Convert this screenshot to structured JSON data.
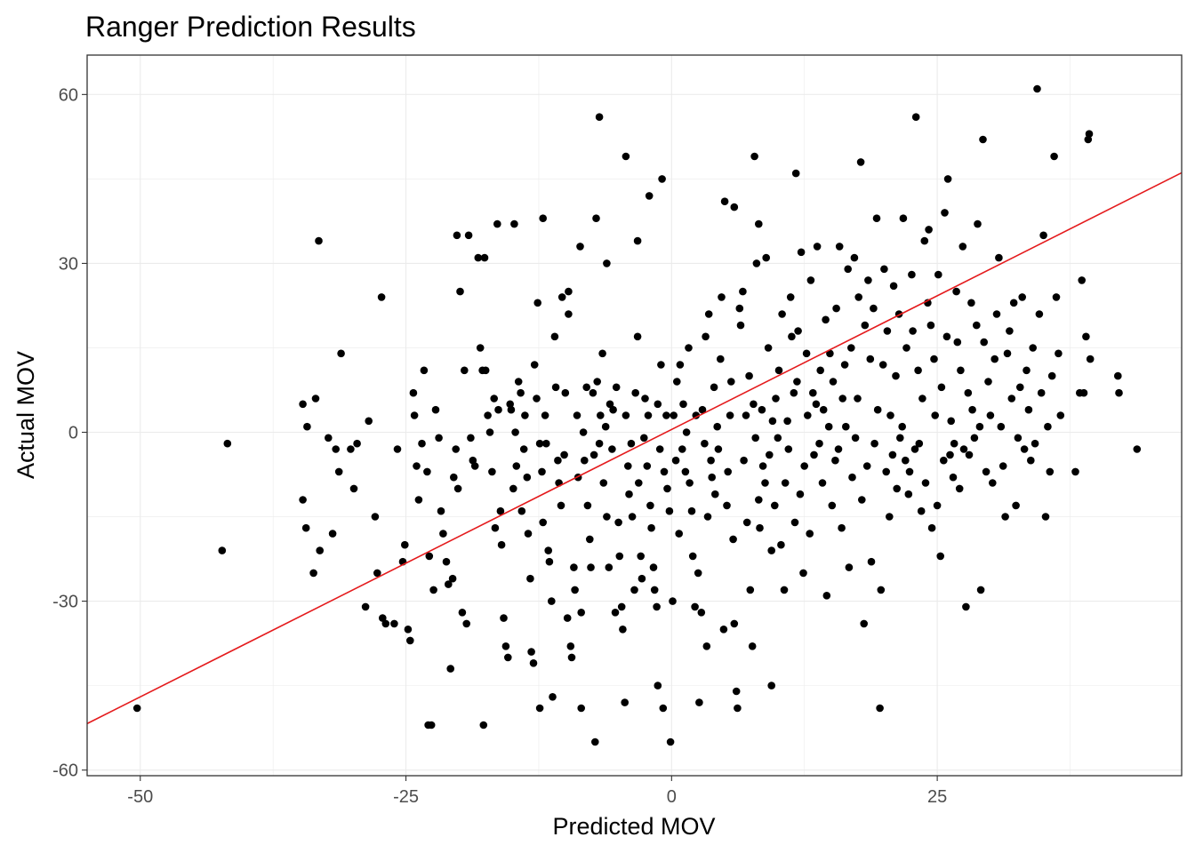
{
  "chart_data": {
    "type": "scatter",
    "title": "Ranger Prediction Results",
    "xlabel": "Predicted MOV",
    "ylabel": "Actual MOV",
    "xlim": [
      -55,
      48
    ],
    "ylim": [
      -61,
      67
    ],
    "x_ticks": [
      -50,
      -25,
      0,
      25
    ],
    "y_ticks": [
      -60,
      -30,
      0,
      30,
      60
    ],
    "x_tick_labels": [
      "-50",
      "-25",
      "0",
      "25"
    ],
    "y_tick_labels": [
      "-60",
      "-30",
      "0",
      "30",
      "60"
    ],
    "grid": true,
    "legend": "none",
    "point_color": "#000000",
    "fit_line": {
      "color": "#e41a1c",
      "slope": 0.95,
      "intercept": 0.5
    },
    "points": [
      [
        -50.3,
        -49
      ],
      [
        -42.3,
        -21
      ],
      [
        -41.8,
        -2
      ],
      [
        -33.2,
        34
      ],
      [
        -34.7,
        5
      ],
      [
        -34.3,
        1
      ],
      [
        -33.7,
        -25
      ],
      [
        -33.1,
        -21
      ],
      [
        -32.3,
        -1
      ],
      [
        -33.5,
        6
      ],
      [
        -34.7,
        -12
      ],
      [
        -34.4,
        -17
      ],
      [
        -31.6,
        -3
      ],
      [
        -31.3,
        -7
      ],
      [
        -31.1,
        14
      ],
      [
        -31.9,
        -18
      ],
      [
        -30.2,
        -3
      ],
      [
        -29.9,
        -10
      ],
      [
        -29.6,
        -2
      ],
      [
        -28.8,
        -31
      ],
      [
        -28.5,
        2
      ],
      [
        -27.9,
        -15
      ],
      [
        -27.7,
        -25
      ],
      [
        -27.3,
        24
      ],
      [
        -27.2,
        -33
      ],
      [
        -26.9,
        -34
      ],
      [
        -26.1,
        -34
      ],
      [
        -25.8,
        -3
      ],
      [
        -25.3,
        -23
      ],
      [
        -25.1,
        -20
      ],
      [
        -24.8,
        -35
      ],
      [
        -24.6,
        -37
      ],
      [
        -24.3,
        7
      ],
      [
        -24.2,
        3
      ],
      [
        -24.0,
        -6
      ],
      [
        -23.8,
        -12
      ],
      [
        -23.5,
        -2
      ],
      [
        -23.3,
        11
      ],
      [
        -23.0,
        -7
      ],
      [
        -22.8,
        -22
      ],
      [
        -22.6,
        -52
      ],
      [
        -22.4,
        -28
      ],
      [
        -22.2,
        4
      ],
      [
        -21.9,
        -1
      ],
      [
        -21.7,
        -14
      ],
      [
        -21.5,
        -18
      ],
      [
        -21.2,
        -23
      ],
      [
        -21.0,
        -27
      ],
      [
        -20.8,
        -42
      ],
      [
        -20.6,
        -26
      ],
      [
        -20.5,
        -8
      ],
      [
        -20.3,
        -3
      ],
      [
        -20.1,
        -10
      ],
      [
        -19.9,
        25
      ],
      [
        -19.7,
        -32
      ],
      [
        -19.5,
        11
      ],
      [
        -19.3,
        -34
      ],
      [
        -19.1,
        35
      ],
      [
        -18.9,
        -1
      ],
      [
        -18.7,
        -5
      ],
      [
        -18.5,
        -6
      ],
      [
        -18.2,
        31
      ],
      [
        -18.0,
        15
      ],
      [
        -17.8,
        11
      ],
      [
        -17.7,
        -52
      ],
      [
        -17.5,
        11
      ],
      [
        -17.3,
        3
      ],
      [
        -17.1,
        0
      ],
      [
        -16.9,
        -7
      ],
      [
        -16.7,
        6
      ],
      [
        -16.6,
        -17
      ],
      [
        -16.4,
        37
      ],
      [
        -16.3,
        4
      ],
      [
        -16.1,
        -14
      ],
      [
        -16.0,
        -20
      ],
      [
        -15.8,
        -33
      ],
      [
        -15.6,
        -38
      ],
      [
        -15.4,
        -40
      ],
      [
        -15.2,
        5
      ],
      [
        -15.1,
        4
      ],
      [
        -14.9,
        -10
      ],
      [
        -14.7,
        0
      ],
      [
        -14.6,
        -6
      ],
      [
        -14.4,
        9
      ],
      [
        -14.2,
        7
      ],
      [
        -14.1,
        -14
      ],
      [
        -13.9,
        -3
      ],
      [
        -13.8,
        3
      ],
      [
        -13.6,
        -8
      ],
      [
        -13.5,
        -18
      ],
      [
        -13.3,
        -26
      ],
      [
        -13.2,
        -39
      ],
      [
        -13.0,
        -41
      ],
      [
        -12.9,
        12
      ],
      [
        -12.7,
        6
      ],
      [
        -12.6,
        23
      ],
      [
        -12.4,
        -2
      ],
      [
        -12.2,
        -7
      ],
      [
        -12.1,
        -16
      ],
      [
        -11.9,
        3
      ],
      [
        -11.8,
        -2
      ],
      [
        -11.6,
        -21
      ],
      [
        -11.5,
        -23
      ],
      [
        -11.3,
        -30
      ],
      [
        -11.2,
        -47
      ],
      [
        -11.0,
        17
      ],
      [
        -10.9,
        8
      ],
      [
        -10.7,
        -5
      ],
      [
        -10.6,
        -9
      ],
      [
        -10.4,
        -13
      ],
      [
        -10.3,
        24
      ],
      [
        -10.1,
        -4
      ],
      [
        -10.0,
        7
      ],
      [
        -9.8,
        -33
      ],
      [
        -9.7,
        25
      ],
      [
        -9.5,
        -38
      ],
      [
        -9.4,
        -40
      ],
      [
        -9.2,
        -24
      ],
      [
        -9.1,
        -28
      ],
      [
        -8.9,
        3
      ],
      [
        -8.8,
        -8
      ],
      [
        -8.6,
        33
      ],
      [
        -8.5,
        -32
      ],
      [
        -8.3,
        0
      ],
      [
        -8.2,
        -5
      ],
      [
        -8.0,
        8
      ],
      [
        -7.9,
        -13
      ],
      [
        -7.7,
        -19
      ],
      [
        -7.6,
        -24
      ],
      [
        -7.4,
        7
      ],
      [
        -7.3,
        -4
      ],
      [
        -7.1,
        38
      ],
      [
        -7.0,
        9
      ],
      [
        -6.8,
        -2
      ],
      [
        -6.7,
        3
      ],
      [
        -6.5,
        14
      ],
      [
        -6.4,
        -9
      ],
      [
        -6.2,
        1
      ],
      [
        -6.1,
        -15
      ],
      [
        -5.9,
        -24
      ],
      [
        -5.8,
        5
      ],
      [
        -5.6,
        -3
      ],
      [
        -5.5,
        4
      ],
      [
        -5.3,
        -32
      ],
      [
        -5.2,
        8
      ],
      [
        -5.0,
        -16
      ],
      [
        -4.9,
        -22
      ],
      [
        -4.7,
        -31
      ],
      [
        -4.6,
        -35
      ],
      [
        -4.4,
        -48
      ],
      [
        -4.3,
        3
      ],
      [
        -4.1,
        -6
      ],
      [
        -4.0,
        -11
      ],
      [
        -3.8,
        -2
      ],
      [
        -3.7,
        -15
      ],
      [
        -3.5,
        -28
      ],
      [
        -3.4,
        7
      ],
      [
        -3.2,
        17
      ],
      [
        -3.1,
        -9
      ],
      [
        -2.9,
        -22
      ],
      [
        -2.8,
        -26
      ],
      [
        -2.6,
        -1
      ],
      [
        -2.5,
        6
      ],
      [
        -2.3,
        -6
      ],
      [
        -2.2,
        3
      ],
      [
        -2.0,
        -13
      ],
      [
        -1.9,
        -17
      ],
      [
        -1.7,
        -24
      ],
      [
        -1.6,
        -28
      ],
      [
        -1.4,
        -31
      ],
      [
        -1.3,
        5
      ],
      [
        -1.1,
        -3
      ],
      [
        -1.0,
        12
      ],
      [
        -0.8,
        -49
      ],
      [
        -0.7,
        -7
      ],
      [
        -0.5,
        3
      ],
      [
        -0.4,
        -10
      ],
      [
        -0.2,
        -14
      ],
      [
        -0.1,
        -55
      ],
      [
        0.1,
        -30
      ],
      [
        0.2,
        3
      ],
      [
        0.4,
        -5
      ],
      [
        0.5,
        9
      ],
      [
        0.7,
        -18
      ],
      [
        0.8,
        12
      ],
      [
        1.0,
        -3
      ],
      [
        1.1,
        5
      ],
      [
        1.3,
        -7
      ],
      [
        1.4,
        0
      ],
      [
        1.6,
        15
      ],
      [
        1.7,
        -9
      ],
      [
        1.9,
        -14
      ],
      [
        2.0,
        -22
      ],
      [
        2.2,
        -31
      ],
      [
        2.3,
        3
      ],
      [
        2.5,
        -25
      ],
      [
        2.6,
        -48
      ],
      [
        2.8,
        -32
      ],
      [
        2.9,
        4
      ],
      [
        3.1,
        -2
      ],
      [
        3.2,
        17
      ],
      [
        3.4,
        -15
      ],
      [
        3.5,
        21
      ],
      [
        3.7,
        -5
      ],
      [
        3.8,
        -8
      ],
      [
        4.0,
        8
      ],
      [
        4.1,
        -11
      ],
      [
        4.3,
        1
      ],
      [
        4.4,
        -3
      ],
      [
        4.6,
        13
      ],
      [
        4.7,
        24
      ],
      [
        4.9,
        -35
      ],
      [
        5.0,
        41
      ],
      [
        5.2,
        -13
      ],
      [
        5.3,
        -7
      ],
      [
        5.5,
        3
      ],
      [
        5.6,
        9
      ],
      [
        5.8,
        -19
      ],
      [
        5.9,
        -34
      ],
      [
        6.1,
        -46
      ],
      [
        6.2,
        -49
      ],
      [
        6.4,
        22
      ],
      [
        6.5,
        19
      ],
      [
        6.7,
        25
      ],
      [
        6.8,
        -5
      ],
      [
        7.0,
        3
      ],
      [
        7.1,
        -16
      ],
      [
        7.3,
        10
      ],
      [
        7.4,
        -28
      ],
      [
        7.6,
        -38
      ],
      [
        7.7,
        5
      ],
      [
        7.9,
        -1
      ],
      [
        8.0,
        30
      ],
      [
        8.2,
        -12
      ],
      [
        8.3,
        -17
      ],
      [
        8.5,
        4
      ],
      [
        8.6,
        -6
      ],
      [
        8.8,
        -9
      ],
      [
        8.9,
        31
      ],
      [
        9.1,
        15
      ],
      [
        9.2,
        -4
      ],
      [
        9.4,
        -21
      ],
      [
        9.5,
        2
      ],
      [
        9.7,
        -13
      ],
      [
        9.8,
        6
      ],
      [
        10.0,
        -1
      ],
      [
        10.1,
        11
      ],
      [
        10.3,
        -20
      ],
      [
        10.4,
        21
      ],
      [
        10.6,
        -28
      ],
      [
        10.7,
        -9
      ],
      [
        10.9,
        2
      ],
      [
        11.0,
        -3
      ],
      [
        11.2,
        24
      ],
      [
        11.3,
        17
      ],
      [
        11.5,
        7
      ],
      [
        11.6,
        -16
      ],
      [
        11.8,
        9
      ],
      [
        11.9,
        18
      ],
      [
        12.1,
        -11
      ],
      [
        12.2,
        32
      ],
      [
        12.4,
        -25
      ],
      [
        12.5,
        -6
      ],
      [
        12.7,
        14
      ],
      [
        12.8,
        3
      ],
      [
        13.0,
        -18
      ],
      [
        13.1,
        27
      ],
      [
        13.3,
        7
      ],
      [
        13.4,
        -4
      ],
      [
        13.6,
        5
      ],
      [
        13.7,
        33
      ],
      [
        13.9,
        -2
      ],
      [
        14.0,
        11
      ],
      [
        14.2,
        -9
      ],
      [
        14.3,
        4
      ],
      [
        14.5,
        20
      ],
      [
        14.6,
        -29
      ],
      [
        14.8,
        1
      ],
      [
        14.9,
        14
      ],
      [
        15.1,
        -13
      ],
      [
        15.2,
        9
      ],
      [
        15.4,
        -5
      ],
      [
        15.5,
        22
      ],
      [
        15.7,
        -3
      ],
      [
        15.8,
        33
      ],
      [
        16.0,
        -17
      ],
      [
        16.1,
        6
      ],
      [
        16.3,
        12
      ],
      [
        16.4,
        1
      ],
      [
        16.6,
        29
      ],
      [
        16.7,
        -24
      ],
      [
        16.9,
        15
      ],
      [
        17.0,
        -8
      ],
      [
        17.2,
        31
      ],
      [
        17.3,
        -1
      ],
      [
        17.5,
        6
      ],
      [
        17.6,
        24
      ],
      [
        17.8,
        48
      ],
      [
        17.9,
        -12
      ],
      [
        18.1,
        -34
      ],
      [
        18.2,
        19
      ],
      [
        18.4,
        -6
      ],
      [
        18.5,
        27
      ],
      [
        18.7,
        13
      ],
      [
        18.8,
        -23
      ],
      [
        19.0,
        22
      ],
      [
        19.1,
        -2
      ],
      [
        19.3,
        38
      ],
      [
        19.4,
        4
      ],
      [
        19.6,
        -49
      ],
      [
        19.7,
        -28
      ],
      [
        19.9,
        12
      ],
      [
        20.0,
        29
      ],
      [
        20.2,
        -7
      ],
      [
        20.3,
        18
      ],
      [
        20.5,
        -15
      ],
      [
        20.6,
        3
      ],
      [
        20.8,
        -4
      ],
      [
        20.9,
        26
      ],
      [
        21.1,
        10
      ],
      [
        21.2,
        -10
      ],
      [
        21.4,
        21
      ],
      [
        21.5,
        -1
      ],
      [
        21.7,
        1
      ],
      [
        21.8,
        38
      ],
      [
        22.0,
        -5
      ],
      [
        22.1,
        15
      ],
      [
        22.3,
        -11
      ],
      [
        22.4,
        -7
      ],
      [
        22.6,
        28
      ],
      [
        22.7,
        18
      ],
      [
        22.9,
        -3
      ],
      [
        23.0,
        56
      ],
      [
        23.2,
        11
      ],
      [
        23.3,
        -2
      ],
      [
        23.5,
        -14
      ],
      [
        23.6,
        6
      ],
      [
        23.8,
        34
      ],
      [
        23.9,
        -9
      ],
      [
        24.1,
        23
      ],
      [
        24.2,
        36
      ],
      [
        24.4,
        19
      ],
      [
        24.5,
        -17
      ],
      [
        24.7,
        13
      ],
      [
        24.8,
        3
      ],
      [
        25.0,
        -13
      ],
      [
        25.1,
        28
      ],
      [
        25.3,
        -22
      ],
      [
        25.4,
        8
      ],
      [
        25.6,
        -5
      ],
      [
        25.7,
        39
      ],
      [
        25.9,
        17
      ],
      [
        26.0,
        45
      ],
      [
        26.2,
        -4
      ],
      [
        26.3,
        2
      ],
      [
        26.5,
        -8
      ],
      [
        26.6,
        -2
      ],
      [
        26.8,
        25
      ],
      [
        26.9,
        16
      ],
      [
        27.1,
        -10
      ],
      [
        27.2,
        11
      ],
      [
        27.4,
        33
      ],
      [
        27.5,
        -3
      ],
      [
        27.7,
        -31
      ],
      [
        27.9,
        7
      ],
      [
        28.0,
        -4
      ],
      [
        28.2,
        23
      ],
      [
        28.3,
        4
      ],
      [
        28.5,
        -1
      ],
      [
        28.7,
        19
      ],
      [
        28.8,
        37
      ],
      [
        29.0,
        1
      ],
      [
        29.1,
        -28
      ],
      [
        29.3,
        52
      ],
      [
        29.4,
        16
      ],
      [
        29.6,
        -7
      ],
      [
        29.8,
        9
      ],
      [
        30.0,
        3
      ],
      [
        30.2,
        -9
      ],
      [
        30.4,
        13
      ],
      [
        30.6,
        21
      ],
      [
        30.8,
        31
      ],
      [
        31.0,
        1
      ],
      [
        31.2,
        -6
      ],
      [
        31.4,
        -15
      ],
      [
        31.6,
        14
      ],
      [
        31.8,
        18
      ],
      [
        32.0,
        6
      ],
      [
        32.2,
        23
      ],
      [
        32.4,
        -13
      ],
      [
        32.6,
        -1
      ],
      [
        32.8,
        8
      ],
      [
        33.0,
        24
      ],
      [
        33.2,
        -3
      ],
      [
        33.4,
        11
      ],
      [
        33.6,
        4
      ],
      [
        33.8,
        -5
      ],
      [
        34.0,
        15
      ],
      [
        34.2,
        -2
      ],
      [
        34.4,
        61
      ],
      [
        34.6,
        21
      ],
      [
        34.8,
        7
      ],
      [
        35.0,
        35
      ],
      [
        35.2,
        -15
      ],
      [
        35.4,
        1
      ],
      [
        35.6,
        -7
      ],
      [
        35.8,
        10
      ],
      [
        36.0,
        49
      ],
      [
        36.2,
        24
      ],
      [
        36.4,
        14
      ],
      [
        36.6,
        3
      ],
      [
        38.0,
        -7
      ],
      [
        38.4,
        7
      ],
      [
        38.6,
        27
      ],
      [
        38.8,
        7
      ],
      [
        39.0,
        17
      ],
      [
        39.2,
        52
      ],
      [
        39.3,
        53
      ],
      [
        39.4,
        13
      ],
      [
        42.0,
        10
      ],
      [
        42.1,
        7
      ],
      [
        43.8,
        -3
      ],
      [
        -8.5,
        -49
      ],
      [
        -7.2,
        -55
      ],
      [
        -6.8,
        56
      ],
      [
        -4.3,
        49
      ],
      [
        -2.1,
        42
      ],
      [
        -0.9,
        45
      ],
      [
        5.9,
        40
      ],
      [
        7.8,
        49
      ],
      [
        11.7,
        46
      ],
      [
        8.2,
        37
      ],
      [
        3.3,
        -38
      ],
      [
        9.4,
        -45
      ],
      [
        -12.4,
        -49
      ],
      [
        -22.9,
        -52
      ],
      [
        -20.2,
        35
      ],
      [
        -17.6,
        31
      ],
      [
        -14.8,
        37
      ],
      [
        -12.1,
        38
      ],
      [
        -1.3,
        -45
      ],
      [
        -3.2,
        34
      ],
      [
        -6.1,
        30
      ],
      [
        -9.7,
        21
      ]
    ]
  }
}
